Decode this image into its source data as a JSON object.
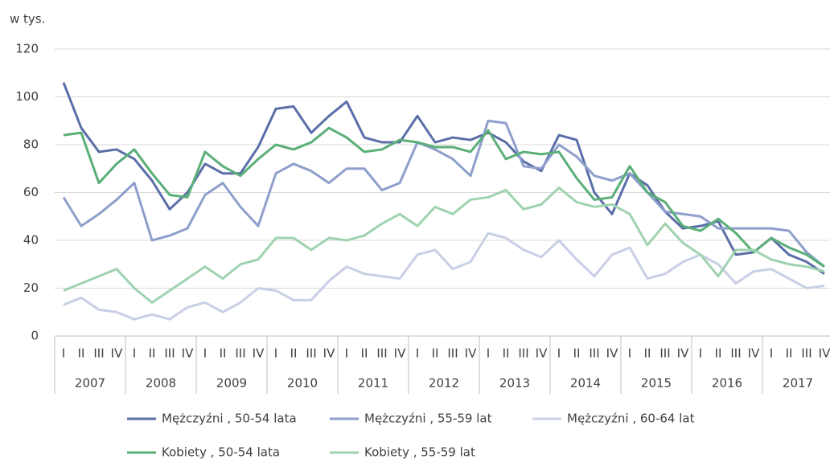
{
  "chart_data": {
    "type": "line",
    "y_label": "w tys.",
    "categories": [
      "I",
      "II",
      "III",
      "IV",
      "I",
      "II",
      "III",
      "IV",
      "I",
      "II",
      "III",
      "IV",
      "I",
      "II",
      "III",
      "IV",
      "I",
      "II",
      "III",
      "IV",
      "I",
      "II",
      "III",
      "IV",
      "I",
      "II",
      "III",
      "IV",
      "I",
      "II",
      "III",
      "IV",
      "I",
      "II",
      "III",
      "IV",
      "I",
      "II",
      "III",
      "IV",
      "I",
      "II",
      "III",
      "IV"
    ],
    "groups": [
      "2007",
      "2008",
      "2009",
      "2010",
      "2011",
      "2012",
      "2013",
      "2014",
      "2015",
      "2016",
      "2017"
    ],
    "ylim": [
      0,
      120
    ],
    "yticks": [
      0,
      20,
      40,
      60,
      80,
      100,
      120
    ],
    "grid": true,
    "legend": "bottom",
    "series": [
      {
        "name": "Mężczyźni , 50-54 lata",
        "color": "#5b6ea8",
        "values": [
          106,
          87,
          77,
          78,
          74,
          65,
          53,
          60,
          72,
          68,
          68,
          79,
          95,
          96,
          85,
          92,
          98,
          83,
          81,
          81,
          92,
          81,
          83,
          82,
          85,
          81,
          73,
          69,
          84,
          82,
          60,
          51,
          68,
          63,
          52,
          45,
          46,
          48,
          34,
          35,
          41,
          34,
          31,
          26
        ]
      },
      {
        "name": "Mężczyźni , 55-59 lat",
        "color": "#8f9fcc",
        "values": [
          58,
          46,
          51,
          57,
          64,
          40,
          42,
          45,
          59,
          64,
          54,
          46,
          68,
          72,
          69,
          64,
          70,
          70,
          61,
          64,
          81,
          78,
          74,
          67,
          90,
          89,
          71,
          70,
          80,
          75,
          67,
          65,
          68,
          60,
          52,
          51,
          50,
          45,
          45,
          45,
          45,
          44,
          35,
          29
        ]
      },
      {
        "name": "Mężczyźni , 60-64 lat",
        "color": "#c9cfe4",
        "values": [
          13,
          16,
          11,
          10,
          7,
          9,
          7,
          12,
          14,
          10,
          14,
          20,
          19,
          15,
          15,
          23,
          29,
          26,
          25,
          24,
          34,
          36,
          28,
          31,
          43,
          41,
          36,
          33,
          40,
          32,
          25,
          34,
          37,
          24,
          26,
          31,
          34,
          30,
          22,
          27,
          28,
          24,
          20,
          21
        ]
      },
      {
        "name": "Kobiety , 50-54 lata",
        "color": "#5aaf78",
        "values": [
          84,
          85,
          64,
          72,
          78,
          68,
          59,
          58,
          77,
          71,
          67,
          74,
          80,
          78,
          81,
          87,
          83,
          77,
          78,
          82,
          81,
          79,
          79,
          77,
          86,
          74,
          77,
          76,
          77,
          66,
          57,
          58,
          71,
          60,
          56,
          46,
          44,
          49,
          43,
          35,
          41,
          37,
          34,
          29
        ]
      },
      {
        "name": "Kobiety , 55-59 lat",
        "color": "#9fd3b0",
        "values": [
          19,
          22,
          25,
          28,
          20,
          14,
          19,
          24,
          29,
          24,
          30,
          32,
          41,
          41,
          36,
          41,
          40,
          42,
          47,
          51,
          46,
          54,
          51,
          57,
          58,
          61,
          53,
          55,
          62,
          56,
          54,
          55,
          51,
          38,
          47,
          39,
          34,
          25,
          36,
          36,
          32,
          30,
          29,
          27
        ]
      }
    ]
  }
}
